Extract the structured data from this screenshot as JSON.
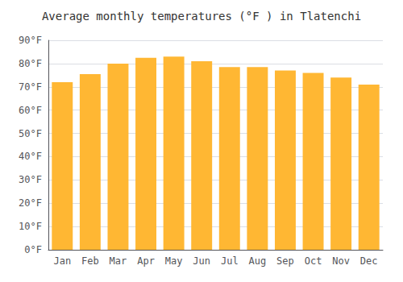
{
  "chart_data": {
    "type": "bar",
    "title": "Average monthly temperatures (°F ) in Tlatenchi",
    "categories": [
      "Jan",
      "Feb",
      "Mar",
      "Apr",
      "May",
      "Jun",
      "Jul",
      "Aug",
      "Sep",
      "Oct",
      "Nov",
      "Dec"
    ],
    "values": [
      72,
      75.5,
      80,
      82.5,
      83,
      81,
      78.5,
      78.5,
      77,
      76,
      74,
      71
    ],
    "color": "#FFB733",
    "ylim": [
      0,
      90
    ],
    "yticks": [
      {
        "value": 0,
        "label": "0°F"
      },
      {
        "value": 10,
        "label": "10°F"
      },
      {
        "value": 20,
        "label": "20°F"
      },
      {
        "value": 30,
        "label": "30°F"
      },
      {
        "value": 40,
        "label": "40°F"
      },
      {
        "value": 50,
        "label": "50°F"
      },
      {
        "value": 60,
        "label": "60°F"
      },
      {
        "value": 70,
        "label": "70°F"
      },
      {
        "value": 80,
        "label": "80°F"
      },
      {
        "value": 90,
        "label": "90°F"
      }
    ],
    "grid": true
  }
}
